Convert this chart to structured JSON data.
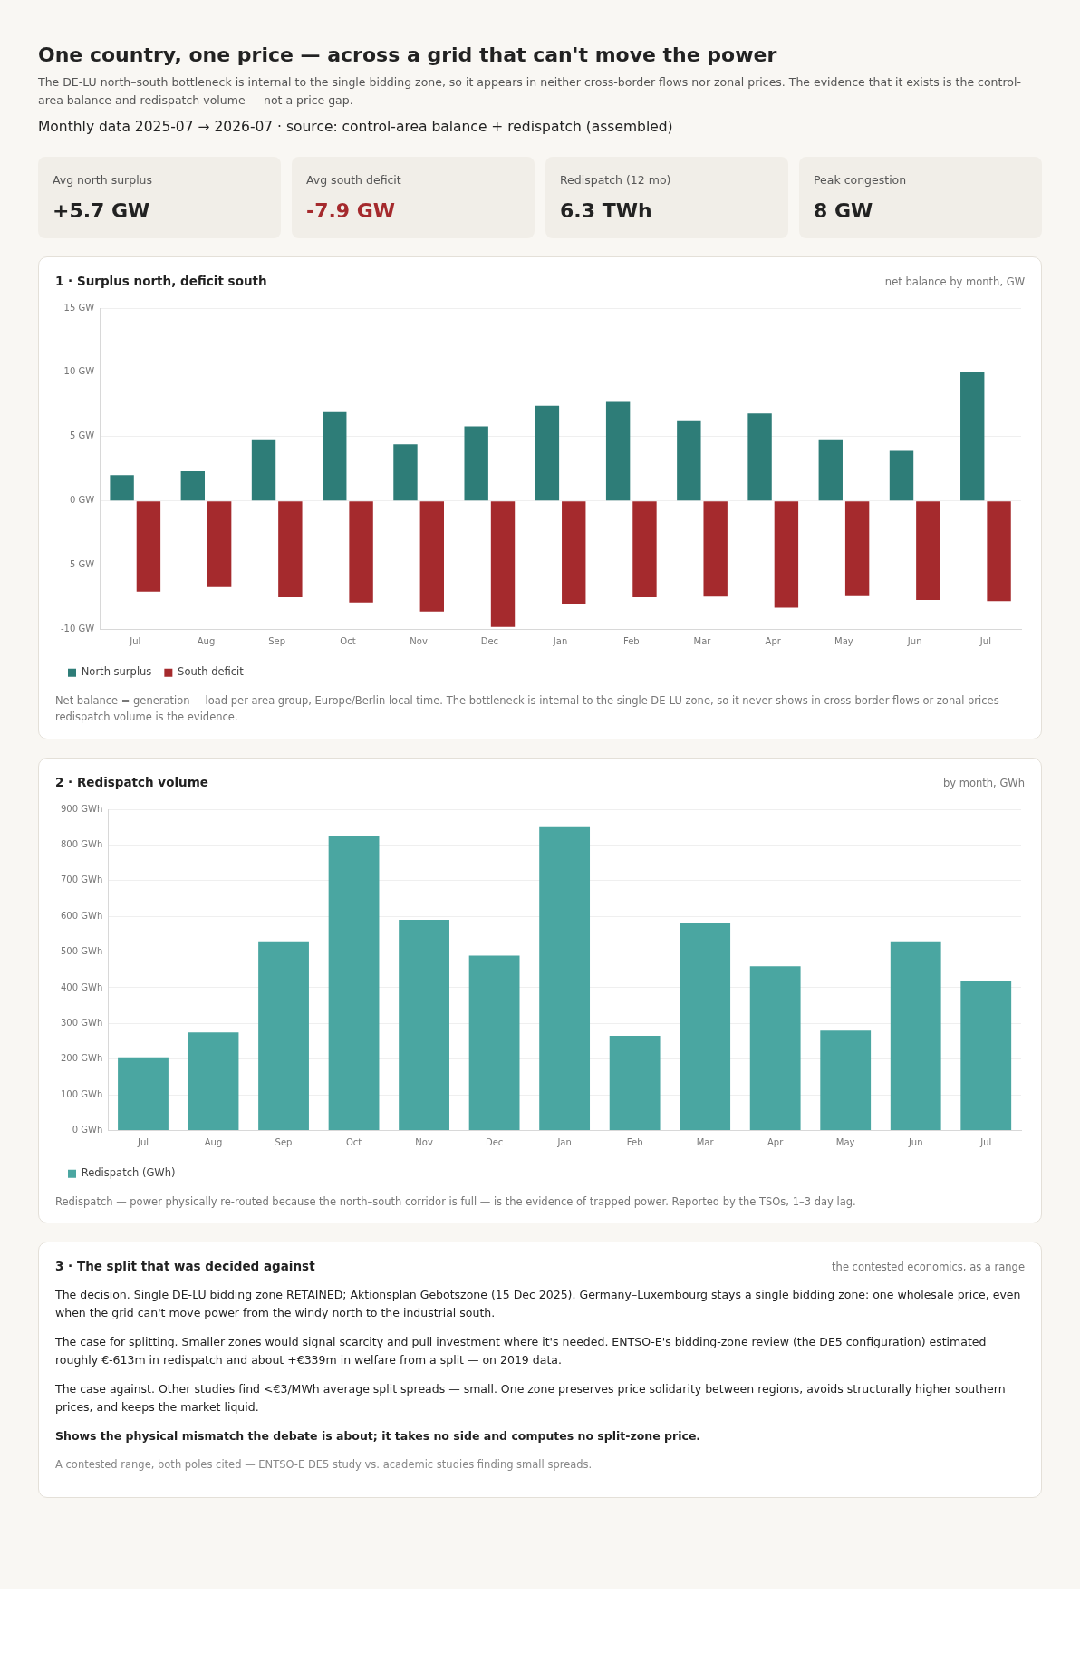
{
  "chart_data": [
    {
      "type": "other",
      "title": "One country, one price — across a grid that can't move the power",
      "subtitle": "The DE-LU north–south bottleneck is internal to the single bidding zone, so it appears in neither cross-border flows nor zonal prices. The evidence that it exists is the control-area balance and redispatch volume — not a price gap.",
      "annotations": [
        "Monthly data 2025-07 → 2026-07 · source: control-area balance + redispatch (assembled)",
        "Avg north surplus",
        "+5.7 GW",
        "Avg south deficit",
        "-7.9 GW",
        "Redispatch (12 mo)",
        "6.3 TWh",
        "Peak congestion",
        "8 GW"
      ]
    },
    {
      "type": "bar",
      "title": "1 · Surplus north, deficit south",
      "subtitle": "net balance by month, GW",
      "categories": [
        "Jul",
        "Aug",
        "Sep",
        "Oct",
        "Nov",
        "Dec",
        "Jan",
        "Feb",
        "Mar",
        "Apr",
        "May",
        "Jun",
        "Jul"
      ],
      "series": [
        {
          "name": "North surplus",
          "color": "#2e7d78",
          "values": [
            2.0,
            2.3,
            4.8,
            6.9,
            4.4,
            5.8,
            7.4,
            7.7,
            6.2,
            6.8,
            4.8,
            3.9,
            10.0
          ]
        },
        {
          "name": "South deficit",
          "color": "#a52a2d",
          "values": [
            -7.05,
            -6.7,
            -7.5,
            -7.9,
            -8.6,
            -9.8,
            -8.0,
            -7.5,
            -7.45,
            -8.3,
            -7.4,
            -7.7,
            -7.8
          ]
        }
      ],
      "ylim": [
        -10,
        15
      ],
      "yticks": [
        {
          "value": -10,
          "label": "-10 GW"
        },
        {
          "value": -5,
          "label": "-5 GW"
        },
        {
          "value": 0,
          "label": "0 GW"
        },
        {
          "value": 5,
          "label": "5 GW"
        },
        {
          "value": 10,
          "label": "10 GW"
        },
        {
          "value": 15,
          "label": "15 GW"
        }
      ],
      "grid": "y",
      "legend": "bottom left",
      "annotations": [
        "Net balance = generation − load per area group, Europe/Berlin local time. The bottleneck is internal to the single DE-LU zone, so it never shows in cross-border flows or zonal prices — redispatch volume is the evidence."
      ]
    },
    {
      "type": "bar",
      "title": "2 · Redispatch volume",
      "subtitle": "by month, GWh",
      "categories": [
        "Jul",
        "Aug",
        "Sep",
        "Oct",
        "Nov",
        "Dec",
        "Jan",
        "Feb",
        "Mar",
        "Apr",
        "May",
        "Jun",
        "Jul"
      ],
      "series": [
        {
          "name": "Redispatch (GWh)",
          "color": "#4aa6a1",
          "values": [
            205,
            275,
            530,
            825,
            590,
            490,
            850,
            265,
            580,
            460,
            280,
            530,
            420
          ]
        }
      ],
      "ylim": [
        0,
        900
      ],
      "yticks": [
        {
          "value": 0,
          "label": "0 GWh"
        },
        {
          "value": 100,
          "label": "100 GWh"
        },
        {
          "value": 200,
          "label": "200 GWh"
        },
        {
          "value": 300,
          "label": "300 GWh"
        },
        {
          "value": 400,
          "label": "400 GWh"
        },
        {
          "value": 500,
          "label": "500 GWh"
        },
        {
          "value": 600,
          "label": "600 GWh"
        },
        {
          "value": 700,
          "label": "700 GWh"
        },
        {
          "value": 800,
          "label": "800 GWh"
        },
        {
          "value": 900,
          "label": "900 GWh"
        }
      ],
      "grid": "y",
      "legend": "bottom left",
      "annotations": [
        "Redispatch — power physically re-routed because the north–south corridor is full — is the evidence of trapped power. Reported by the TSOs, 1–3 day lag."
      ]
    },
    {
      "type": "other",
      "title": "3 · The split that was decided against",
      "subtitle": "the contested economics, as a range",
      "annotations": [
        "The decision. Single DE-LU bidding zone RETAINED; Aktionsplan Gebotszone (15 Dec 2025). Germany–Luxembourg stays a single bidding zone: one wholesale price, even when the grid can't move power from the windy north to the industrial south.",
        "The case for splitting. Smaller zones would signal scarcity and pull investment where it's needed. ENTSO-E's bidding-zone review (the DE5 configuration) estimated roughly €-613m in redispatch and about +€339m in welfare from a split — on 2019 data.",
        "The case against. Other studies find <€3/MWh average split spreads — small. One zone preserves price solidarity between regions, avoids structurally higher southern prices, and keeps the market liquid.",
        "Shows the physical mismatch the debate is about; it takes no side and computes no split-zone price.",
        "A contested range, both poles cited — ENTSO-E DE5 study vs. academic studies finding small spreads."
      ]
    }
  ]
}
